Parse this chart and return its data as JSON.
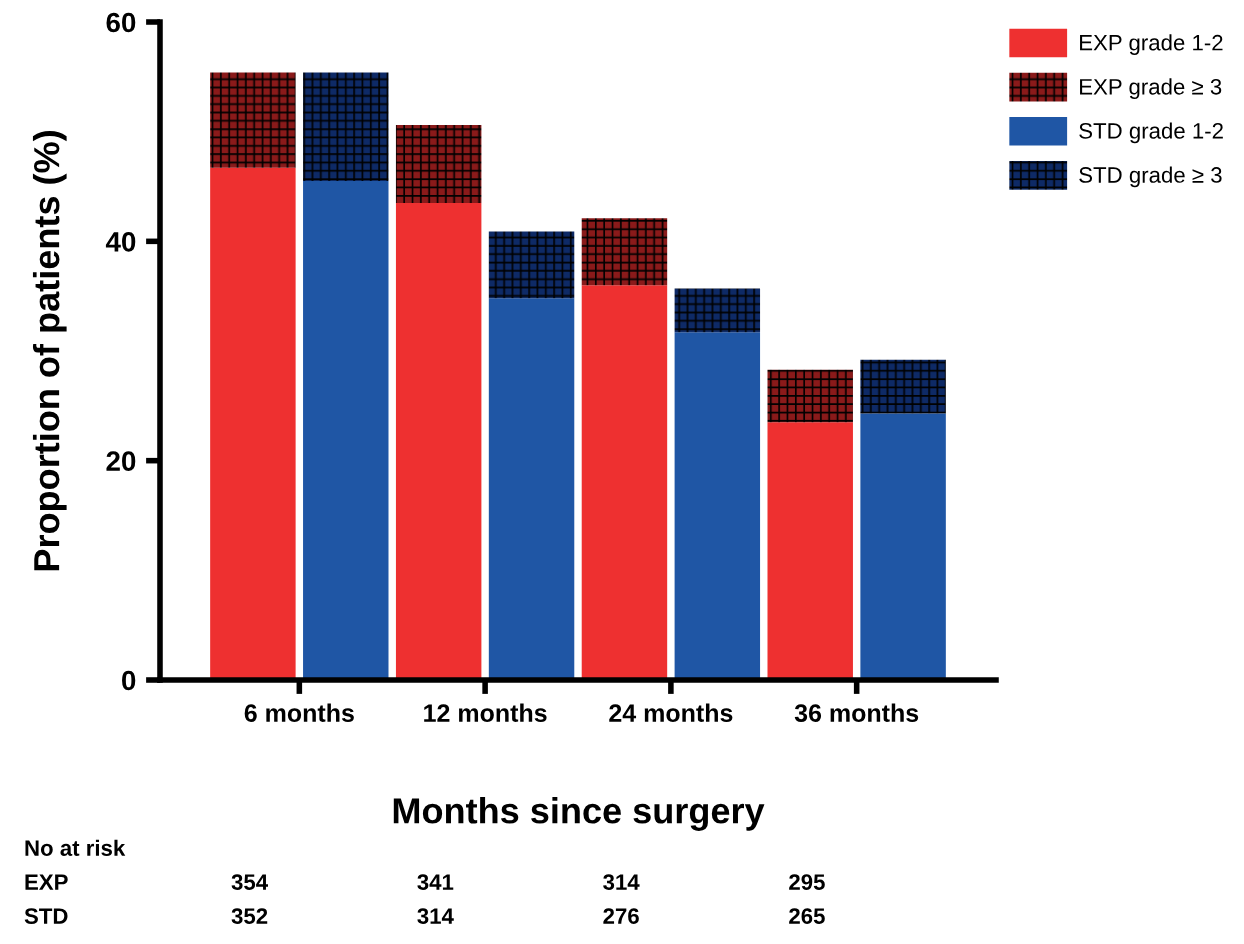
{
  "chart_data": {
    "type": "bar",
    "stacked": true,
    "xlabel": "Months since surgery",
    "ylabel": "Proportion of patients (%)",
    "categories": [
      "6 months",
      null,
      "12 months",
      null,
      "24 months",
      null,
      "36 months",
      null
    ],
    "series": [
      {
        "name": "EXP grade 1-2",
        "color": "#ee3030",
        "values": [
          46.7,
          null,
          43.5,
          null,
          36.0,
          null,
          23.5,
          null
        ]
      },
      {
        "name": "EXP grade ≥ 3",
        "color": "#8a1a1a",
        "values": [
          8.7,
          null,
          7.1,
          null,
          6.1,
          null,
          4.8,
          null
        ]
      },
      {
        "name": "STD grade 1-2",
        "color": "#1f56a5",
        "values": [
          null,
          45.5,
          null,
          34.8,
          null,
          31.7,
          null,
          24.3
        ]
      },
      {
        "name": "STD grade ≥ 3",
        "color": "#0e2a66",
        "values": [
          null,
          9.9,
          null,
          6.1,
          null,
          4.0,
          null,
          4.9
        ]
      }
    ],
    "ylim": [
      0,
      60
    ],
    "yticks": [
      0,
      20,
      40,
      60
    ],
    "legend": "top right",
    "annotations": [
      "No at risk",
      "EXP",
      "STD",
      "354",
      "341",
      "314",
      "295",
      "352",
      "314",
      "276",
      "265"
    ]
  }
}
